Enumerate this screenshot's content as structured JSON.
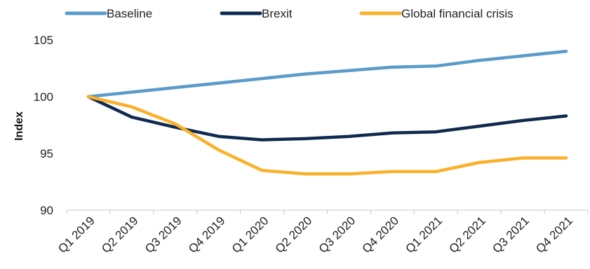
{
  "chart_data": {
    "type": "line",
    "title": "",
    "xlabel": "",
    "ylabel": "Index",
    "ylim": [
      90,
      105
    ],
    "yticks": [
      90,
      95,
      100,
      105
    ],
    "categories": [
      "Q1 2019",
      "Q2 2019",
      "Q3 2019",
      "Q4 2019",
      "Q1 2020",
      "Q2 2020",
      "Q3 2020",
      "Q4 2020",
      "Q1 2021",
      "Q2 2021",
      "Q3 2021",
      "Q4 2021"
    ],
    "series": [
      {
        "name": "Baseline",
        "color": "#5b9bc9",
        "values": [
          100.0,
          100.4,
          100.8,
          101.2,
          101.6,
          102.0,
          102.3,
          102.6,
          102.7,
          103.2,
          103.6,
          104.0
        ]
      },
      {
        "name": "Brexit",
        "color": "#0e2a4f",
        "values": [
          100.0,
          98.2,
          97.3,
          96.5,
          96.2,
          96.3,
          96.5,
          96.8,
          96.9,
          97.4,
          97.9,
          98.3
        ]
      },
      {
        "name": "Global financial crisis",
        "color": "#fbb02a",
        "values": [
          100.0,
          99.1,
          97.6,
          95.3,
          93.5,
          93.2,
          93.2,
          93.4,
          93.4,
          94.2,
          94.6,
          94.6
        ]
      }
    ],
    "legend": "top",
    "grid": false
  }
}
